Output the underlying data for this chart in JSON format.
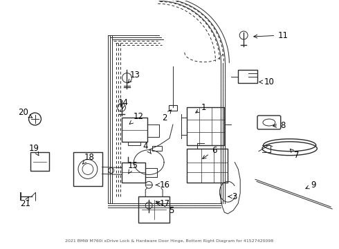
{
  "title": "2021 BMW M760i xDrive Lock & Hardware Door Hinge, Bottom Right Diagram for 41527420098",
  "bg_color": "#ffffff",
  "fig_width": 4.9,
  "fig_height": 3.6,
  "dpi": 100,
  "gray": "#2a2a2a",
  "label_fs": 8.5
}
